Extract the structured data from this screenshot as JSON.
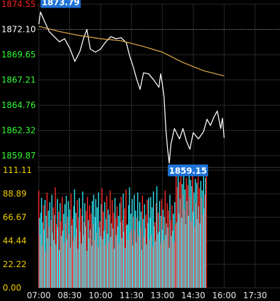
{
  "chart_data": [
    {
      "type": "line",
      "y_ticks": [
        "1874.55",
        "1872.10",
        "1869.65",
        "1867.21",
        "1864.76",
        "1862.32",
        "1859.87"
      ],
      "y_tick_values": [
        1874.55,
        1872.1,
        1869.65,
        1867.21,
        1864.76,
        1862.32,
        1859.87
      ],
      "y_tick_colors": [
        "#ff2020",
        "#ffffff",
        "#33ff33",
        "#33ff33",
        "#33ff33",
        "#33ff33",
        "#33ff33"
      ],
      "ylim": [
        1859.0,
        1874.55
      ],
      "reference_price": 1872.1,
      "max_label": "1873.79",
      "max_value": 1873.79,
      "max_time": "07:05",
      "min_label": "1859.15",
      "min_value": 1859.15,
      "min_time": "13:20",
      "series": [
        {
          "color": "#ffffff",
          "points": [
            [
              "07:00",
              1872.6
            ],
            [
              "07:05",
              1873.79
            ],
            [
              "07:15",
              1873.0
            ],
            [
              "07:30",
              1871.9
            ],
            [
              "07:45",
              1871.4
            ],
            [
              "08:00",
              1870.9
            ],
            [
              "08:15",
              1871.2
            ],
            [
              "08:30",
              1870.3
            ],
            [
              "08:45",
              1869.0
            ],
            [
              "09:00",
              1870.0
            ],
            [
              "09:10",
              1871.2
            ],
            [
              "09:20",
              1872.1
            ],
            [
              "09:30",
              1870.2
            ],
            [
              "09:45",
              1869.9
            ],
            [
              "10:00",
              1870.2
            ],
            [
              "10:15",
              1870.9
            ],
            [
              "10:30",
              1871.4
            ],
            [
              "10:45",
              1871.2
            ],
            [
              "11:00",
              1871.3
            ],
            [
              "11:15",
              1870.8
            ],
            [
              "11:25",
              1869.5
            ],
            [
              "11:35",
              1868.5
            ],
            [
              "11:45",
              1867.3
            ],
            [
              "11:55",
              1866.3
            ],
            [
              "12:05",
              1867.9
            ],
            [
              "12:20",
              1867.8
            ],
            [
              "12:35",
              1867.2
            ],
            [
              "12:50",
              1866.5
            ],
            [
              "12:55",
              1867.8
            ],
            [
              "13:00",
              1866.8
            ],
            [
              "13:05",
              1865.5
            ],
            [
              "13:10",
              1862.5
            ],
            [
              "13:15",
              1860.6
            ],
            [
              "13:20",
              1859.15
            ],
            [
              "13:25",
              1861.0
            ],
            [
              "13:35",
              1862.5
            ],
            [
              "13:50",
              1861.5
            ],
            [
              "14:00",
              1862.5
            ],
            [
              "14:10",
              1861.3
            ],
            [
              "14:20",
              1860.5
            ],
            [
              "14:30",
              1862.1
            ],
            [
              "14:45",
              1861.5
            ],
            [
              "15:00",
              1862.2
            ],
            [
              "15:10",
              1863.4
            ],
            [
              "15:20",
              1862.8
            ],
            [
              "15:30",
              1863.6
            ],
            [
              "15:40",
              1864.2
            ],
            [
              "15:50",
              1862.5
            ],
            [
              "15:55",
              1863.5
            ],
            [
              "16:00",
              1861.6
            ]
          ]
        },
        {
          "color": "#e8b04a",
          "points": [
            [
              "07:00",
              1872.4
            ],
            [
              "08:00",
              1871.9
            ],
            [
              "09:00",
              1871.5
            ],
            [
              "10:00",
              1871.2
            ],
            [
              "11:00",
              1871.0
            ],
            [
              "12:00",
              1870.5
            ],
            [
              "13:00",
              1869.9
            ],
            [
              "14:00",
              1868.9
            ],
            [
              "15:00",
              1868.1
            ],
            [
              "16:00",
              1867.6
            ]
          ]
        }
      ]
    },
    {
      "type": "bar",
      "y_ticks": [
        "111.11",
        "88.89",
        "66.67",
        "44.44",
        "22.22",
        "0.00"
      ],
      "y_tick_values": [
        111.11,
        88.89,
        66.67,
        44.44,
        22.22,
        0.0
      ],
      "ylim": [
        0,
        111.11
      ],
      "up_color": "#ff2a2a",
      "down_color": "#33e6f0",
      "x_ticks": [
        "07:00",
        "08:30",
        "10:00",
        "11:30",
        "13:00",
        "14:30",
        "16:00",
        "17:30"
      ],
      "x_tick_values": [
        "07:00",
        "08:30",
        "10:00",
        "11:30",
        "13:00",
        "14:30",
        "16:00",
        "17:30"
      ],
      "x_start": "07:00",
      "x_end": "17:30",
      "bar_step_minutes": 2,
      "values": [
        92,
        66,
        50,
        71,
        85,
        40,
        62,
        78,
        55,
        83,
        34,
        68,
        90,
        47,
        73,
        58,
        81,
        39,
        64,
        88,
        52,
        76,
        45,
        69,
        95,
        41,
        60,
        84,
        57,
        72,
        36,
        80,
        63,
        49,
        86,
        54,
        70,
        43,
        79,
        61,
        87,
        46,
        67,
        82,
        51,
        74,
        38,
        89,
        59,
        65,
        44,
        77,
        93,
        48,
        71,
        56,
        83,
        37,
        66,
        85,
        53,
        75,
        42,
        68,
        91,
        50,
        62,
        80,
        58,
        73,
        35,
        86,
        64,
        47,
        78,
        55,
        70,
        40,
        82,
        60,
        88,
        45,
        67,
        84,
        52,
        76,
        39,
        90,
        57,
        63,
        49,
        79,
        94,
        46,
        72,
        54,
        81,
        41,
        65,
        87,
        51,
        74,
        44,
        69,
        92,
        48,
        61,
        83,
        56,
        71,
        37,
        85,
        66,
        50,
        77,
        58,
        68,
        42,
        80,
        62,
        86,
        47,
        64,
        89,
        53,
        75,
        38,
        93,
        59,
        60,
        45,
        78,
        95,
        52,
        70,
        55,
        84,
        40,
        67,
        88,
        54,
        73,
        43,
        66,
        90,
        49,
        63,
        81,
        57,
        72,
        36,
        87,
        65,
        48,
        79,
        56,
        69,
        41,
        83,
        61,
        85,
        46,
        66,
        86,
        50,
        76,
        39,
        91,
        58,
        62,
        44,
        80,
        96,
        51,
        71,
        53,
        82,
        42,
        68,
        84,
        55,
        74,
        45,
        67,
        92,
        50,
        61,
        80,
        57,
        73,
        38,
        88,
        64,
        49,
        78,
        54,
        70,
        43,
        81,
        60,
        108,
        62,
        95,
        111,
        70,
        100,
        84,
        106,
        66,
        98,
        88,
        109,
        74,
        93,
        60,
        104,
        82,
        97,
        68,
        110,
        86,
        102,
        63,
        96,
        107,
        72,
        90,
        58,
        103,
        80,
        99,
        65,
        105,
        77,
        94,
        61,
        101,
        85,
        92,
        69,
        106,
        75,
        88,
        104,
        111
      ],
      "directions": [
        1,
        0,
        1,
        0,
        0,
        1,
        0,
        1,
        0,
        0,
        1,
        0,
        1,
        0,
        0,
        1,
        0,
        1,
        1,
        0,
        0,
        1,
        0,
        0,
        1,
        0,
        1,
        0,
        0,
        1,
        0,
        0,
        1,
        0,
        1,
        0,
        0,
        1,
        0,
        1,
        0,
        0,
        1,
        0,
        1,
        0,
        0,
        1,
        0,
        1,
        1,
        0,
        0,
        1,
        0,
        0,
        1,
        0,
        1,
        0,
        0,
        1,
        0,
        1,
        0,
        0,
        1,
        0,
        0,
        1,
        0,
        1,
        0,
        0,
        1,
        0,
        1,
        0,
        0,
        1,
        0,
        1,
        0,
        0,
        1,
        0,
        1,
        0,
        0,
        1,
        0,
        0,
        1,
        0,
        1,
        0,
        0,
        1,
        0,
        1,
        0,
        0,
        1,
        0,
        1,
        0,
        0,
        1,
        0,
        1,
        0,
        0,
        1,
        0,
        1,
        0,
        0,
        1,
        0,
        0,
        1,
        0,
        1,
        0,
        0,
        1,
        0,
        1,
        0,
        0,
        1,
        0,
        0,
        1,
        0,
        1,
        0,
        0,
        1,
        0,
        1,
        0,
        0,
        1,
        0,
        1,
        0,
        0,
        1,
        0,
        0,
        1,
        0,
        1,
        0,
        0,
        1,
        0,
        1,
        0,
        0,
        1,
        0,
        0,
        1,
        0,
        1,
        0,
        0,
        1,
        0,
        1,
        0,
        0,
        1,
        0,
        0,
        1,
        0,
        1,
        0,
        0,
        1,
        0,
        1,
        0,
        0,
        1,
        0,
        1,
        0,
        0,
        1,
        0,
        1,
        0,
        0,
        1,
        0,
        1,
        1,
        0,
        1,
        0,
        0,
        1,
        0,
        1,
        0,
        0,
        1,
        0,
        1,
        0,
        0,
        1,
        0,
        1,
        0,
        0,
        1,
        0,
        1,
        0,
        1,
        0,
        0,
        1,
        0,
        1,
        0,
        0,
        1,
        0,
        1,
        0,
        0,
        1,
        0,
        1,
        0,
        0,
        1,
        0,
        1
      ]
    }
  ]
}
